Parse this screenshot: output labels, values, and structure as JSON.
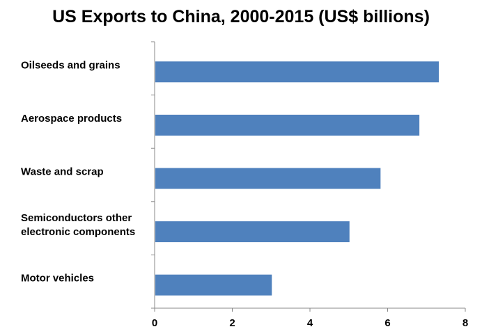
{
  "chart_data": {
    "type": "bar",
    "orientation": "horizontal",
    "title": "US Exports to China, 2000-2015 (US$ billions)",
    "categories": [
      [
        "Oilseeds and grains"
      ],
      [
        "Aerospace products"
      ],
      [
        "Waste and scrap"
      ],
      [
        "Semiconductors  other",
        "electronic components"
      ],
      [
        "Motor vehicles"
      ]
    ],
    "values": [
      7.3,
      6.8,
      5.8,
      5.0,
      3.0
    ],
    "xlim": [
      0,
      8
    ],
    "xticks": [
      "0",
      "2",
      "4",
      "6",
      "8"
    ],
    "grid": false,
    "legend": "none",
    "bar_color": "#4f81bd"
  }
}
